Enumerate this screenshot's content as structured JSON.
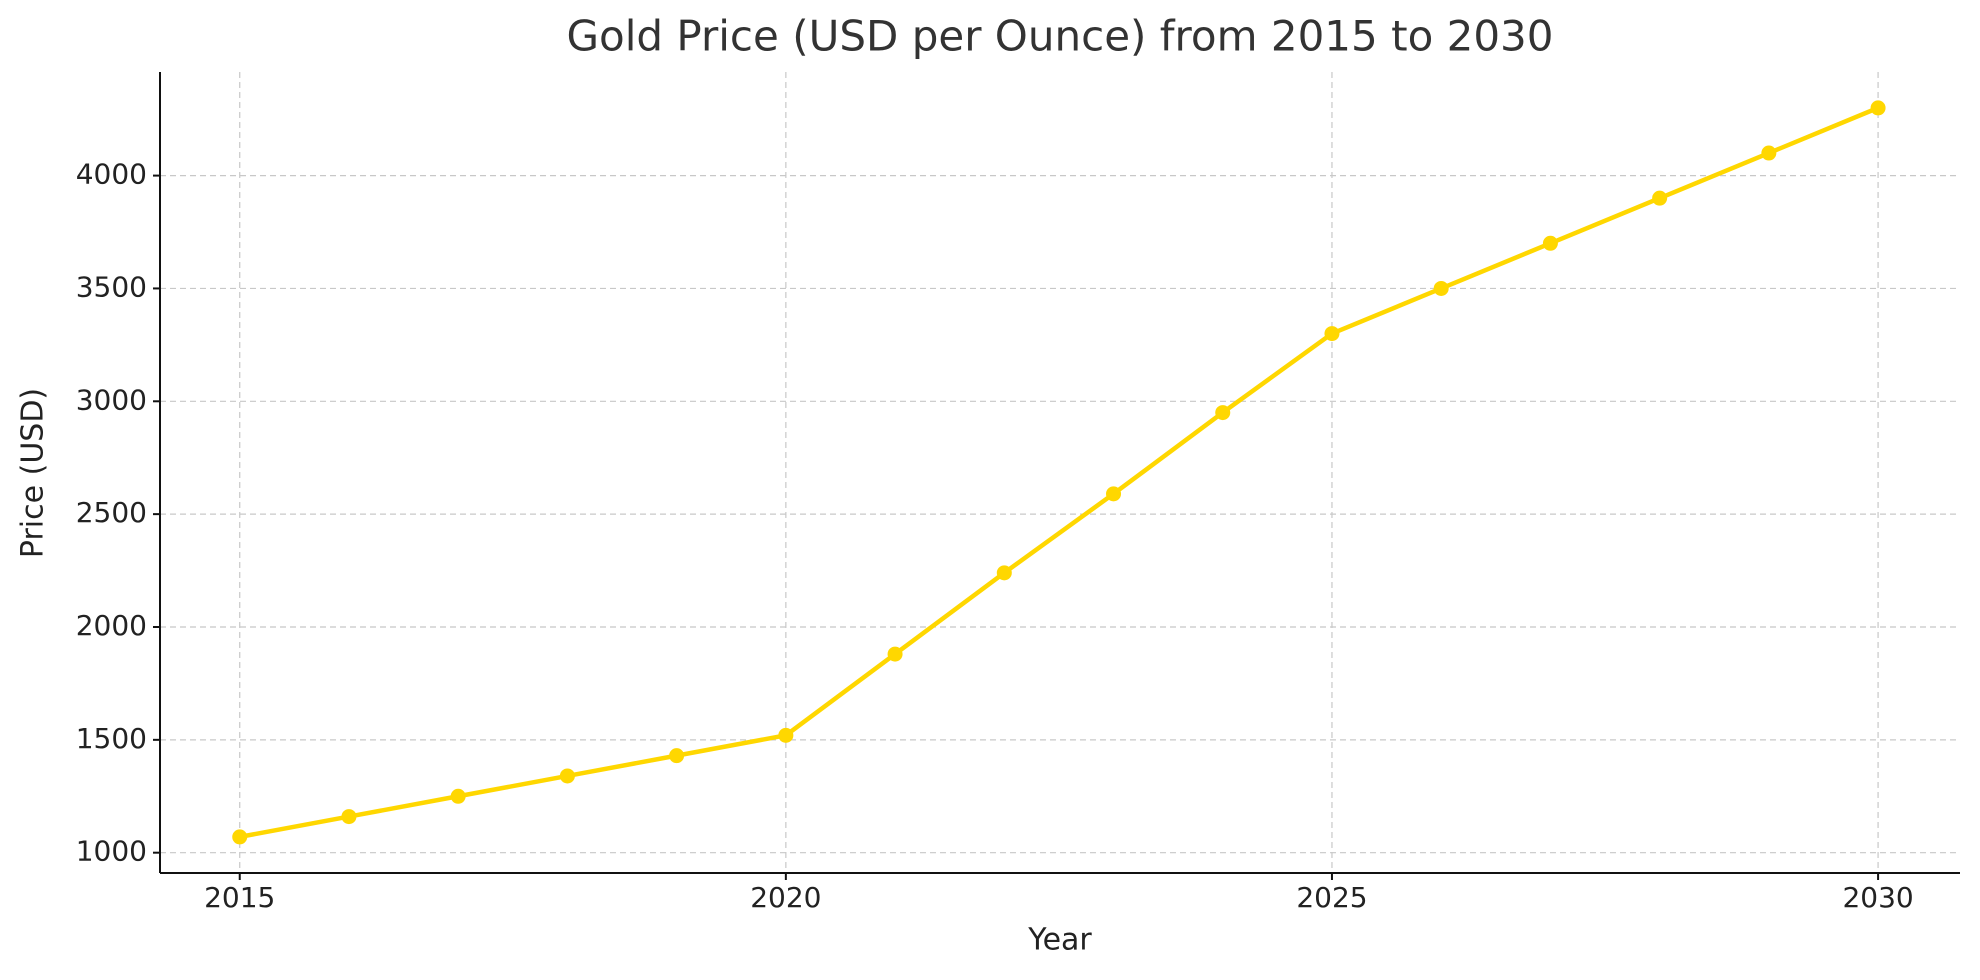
{
  "chart_data": {
    "type": "line",
    "title": "Gold Price (USD per Ounce) from 2015 to 2030",
    "x_label": "Year",
    "y_label": "Price (USD)",
    "x": [
      2015,
      2016,
      2017,
      2018,
      2019,
      2020,
      2021,
      2022,
      2023,
      2024,
      2025,
      2026,
      2027,
      2028,
      2029,
      2030
    ],
    "values": [
      1070,
      1160,
      1250,
      1340,
      1430,
      1520,
      1880,
      2240,
      2590,
      2950,
      3300,
      3500,
      3700,
      3900,
      4100,
      4300
    ],
    "color": "#FFD700",
    "xlim": [
      2014.27,
      2030.75
    ],
    "xticks": [
      2015,
      2020,
      2025,
      2030
    ],
    "ylim": [
      910,
      4459
    ],
    "yticks": [
      1000,
      1500,
      2000,
      2500,
      3000,
      3500,
      4000
    ],
    "grid": true
  }
}
